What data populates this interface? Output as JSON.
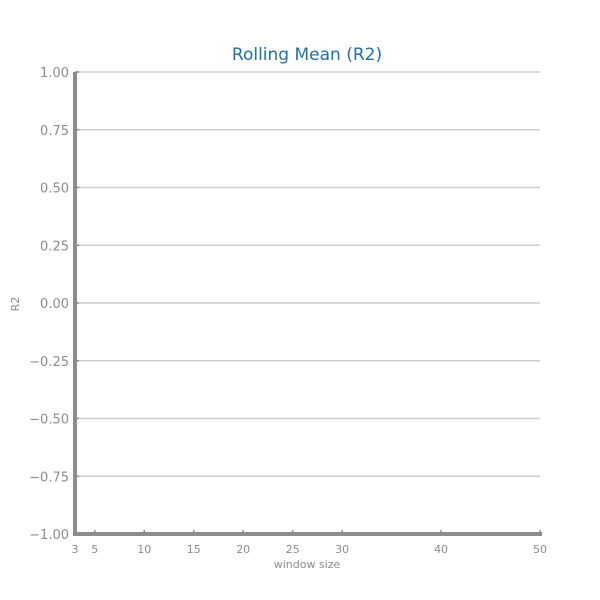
{
  "chart_data": {
    "type": "line",
    "title": "Rolling Mean (R2)",
    "xlabel": "window size",
    "ylabel": "R2",
    "x_ticks": [
      3,
      5,
      10,
      15,
      20,
      25,
      30,
      40,
      50
    ],
    "y_ticks": [
      1.0,
      0.75,
      0.5,
      0.25,
      0.0,
      -0.25,
      -0.5,
      -0.75,
      -1.0
    ],
    "y_tick_labels": [
      "1.00",
      "0.75",
      "0.50",
      "0.25",
      "0.00",
      "−0.25",
      "−0.50",
      "−0.75",
      "−1.00"
    ],
    "xlim": [
      3,
      50
    ],
    "ylim": [
      -1.0,
      1.0
    ],
    "grid": "horizontal",
    "series": [],
    "colors": {
      "title": "#1f6fad",
      "axis": "#8c8c8c",
      "grid": "#cccccc",
      "tick_text": "#8c8c8c"
    }
  }
}
